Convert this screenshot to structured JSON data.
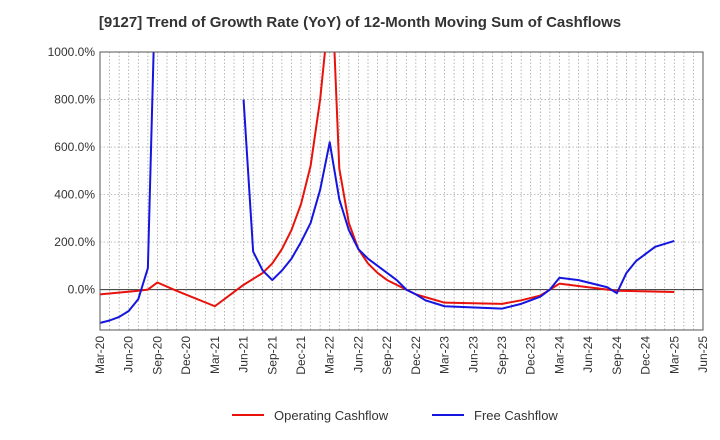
{
  "chart_data": {
    "type": "line",
    "title": "[9127]  Trend of Growth Rate (YoY) of 12-Month Moving Sum of Cashflows",
    "xlabel": "",
    "ylabel": "",
    "x_tick_labels": [
      "Mar-20",
      "Jun-20",
      "Sep-20",
      "Dec-20",
      "Mar-21",
      "Jun-21",
      "Sep-21",
      "Dec-21",
      "Mar-22",
      "Jun-22",
      "Sep-22",
      "Dec-22",
      "Mar-23",
      "Jun-23",
      "Sep-23",
      "Dec-23",
      "Mar-24",
      "Jun-24",
      "Sep-24",
      "Dec-24",
      "Mar-25",
      "Jun-25"
    ],
    "y_ticks": [
      0,
      200,
      400,
      600,
      800,
      1000
    ],
    "y_tick_labels": [
      "0.0%",
      "200.0%",
      "400.0%",
      "600.0%",
      "800.0%",
      "1000.0%"
    ],
    "ylim": [
      -170,
      1000
    ],
    "grid": true,
    "legend_position": "bottom",
    "x_unit": "months since Mar-20",
    "series": [
      {
        "name": "Operating Cashflow",
        "color": "#e8120c",
        "points": [
          [
            0,
            -20
          ],
          [
            4,
            -5
          ],
          [
            5,
            0
          ],
          [
            6,
            30
          ],
          [
            8,
            -5
          ],
          [
            12,
            -70
          ],
          [
            15,
            20
          ],
          [
            17,
            70
          ],
          [
            18,
            110
          ],
          [
            19,
            170
          ],
          [
            20,
            250
          ],
          [
            21,
            360
          ],
          [
            22,
            520
          ],
          [
            23,
            800
          ],
          [
            23.5,
            1000
          ],
          [
            null,
            null
          ],
          [
            24.5,
            1000
          ],
          [
            25,
            510
          ],
          [
            26,
            280
          ],
          [
            27,
            170
          ],
          [
            28,
            110
          ],
          [
            29,
            70
          ],
          [
            30,
            40
          ],
          [
            31,
            20
          ],
          [
            32,
            0
          ],
          [
            33,
            -20
          ],
          [
            36,
            -55
          ],
          [
            42,
            -60
          ],
          [
            44,
            -45
          ],
          [
            46,
            -25
          ],
          [
            48,
            25
          ],
          [
            51,
            10
          ],
          [
            54,
            -5
          ],
          [
            60,
            -10
          ]
        ]
      },
      {
        "name": "Free Cashflow",
        "color": "#1515e0",
        "points": [
          [
            0,
            -140
          ],
          [
            1,
            -130
          ],
          [
            2,
            -115
          ],
          [
            3,
            -90
          ],
          [
            4,
            -40
          ],
          [
            5,
            90
          ],
          [
            5.6,
            1000
          ],
          [
            null,
            null
          ],
          [
            15,
            800
          ],
          [
            16,
            160
          ],
          [
            17,
            80
          ],
          [
            18,
            40
          ],
          [
            19,
            80
          ],
          [
            20,
            130
          ],
          [
            21,
            200
          ],
          [
            22,
            280
          ],
          [
            23,
            420
          ],
          [
            24,
            620
          ],
          [
            25,
            380
          ],
          [
            26,
            250
          ],
          [
            27,
            170
          ],
          [
            28,
            130
          ],
          [
            29,
            100
          ],
          [
            30,
            70
          ],
          [
            31,
            40
          ],
          [
            32,
            0
          ],
          [
            33,
            -20
          ],
          [
            34,
            -45
          ],
          [
            36,
            -70
          ],
          [
            42,
            -80
          ],
          [
            44,
            -60
          ],
          [
            46,
            -30
          ],
          [
            47,
            0
          ],
          [
            48,
            50
          ],
          [
            50,
            40
          ],
          [
            52,
            20
          ],
          [
            53,
            10
          ],
          [
            54,
            -15
          ],
          [
            55,
            70
          ],
          [
            56,
            120
          ],
          [
            57,
            150
          ],
          [
            58,
            180
          ],
          [
            60,
            205
          ]
        ]
      }
    ]
  }
}
